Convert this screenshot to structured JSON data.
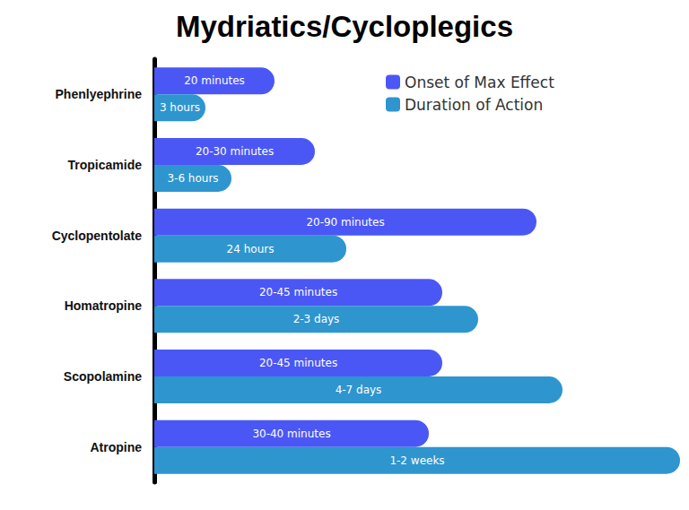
{
  "chart_data": {
    "type": "bar",
    "title": "Mydriatics/Cycloplegics",
    "orientation": "horizontal",
    "categories": [
      "Phenlyephrine",
      "Tropicamide",
      "Cyclopentolate",
      "Homatropine",
      "Scopolamine",
      "Atropine"
    ],
    "series": [
      {
        "name": "Onset of Max Effect",
        "color": "#4b57f5",
        "values": [
          134,
          179,
          426,
          321,
          321,
          306
        ],
        "labels": [
          "20 minutes",
          "20-30 minutes",
          "20-90 minutes",
          "20-45 minutes",
          "20-45 minutes",
          "30-40 minutes"
        ]
      },
      {
        "name": "Duration of Action",
        "color": "#2f95cf",
        "values": [
          57,
          86,
          214,
          361,
          455,
          586
        ],
        "labels": [
          "3 hours",
          "3-6 hours",
          "24 hours",
          "2-3 days",
          "4-7 days",
          "1-2 weeks"
        ]
      }
    ],
    "xlim": [
      0,
      586
    ],
    "tick_labels": "y",
    "grid": false,
    "legend": "upper right"
  }
}
